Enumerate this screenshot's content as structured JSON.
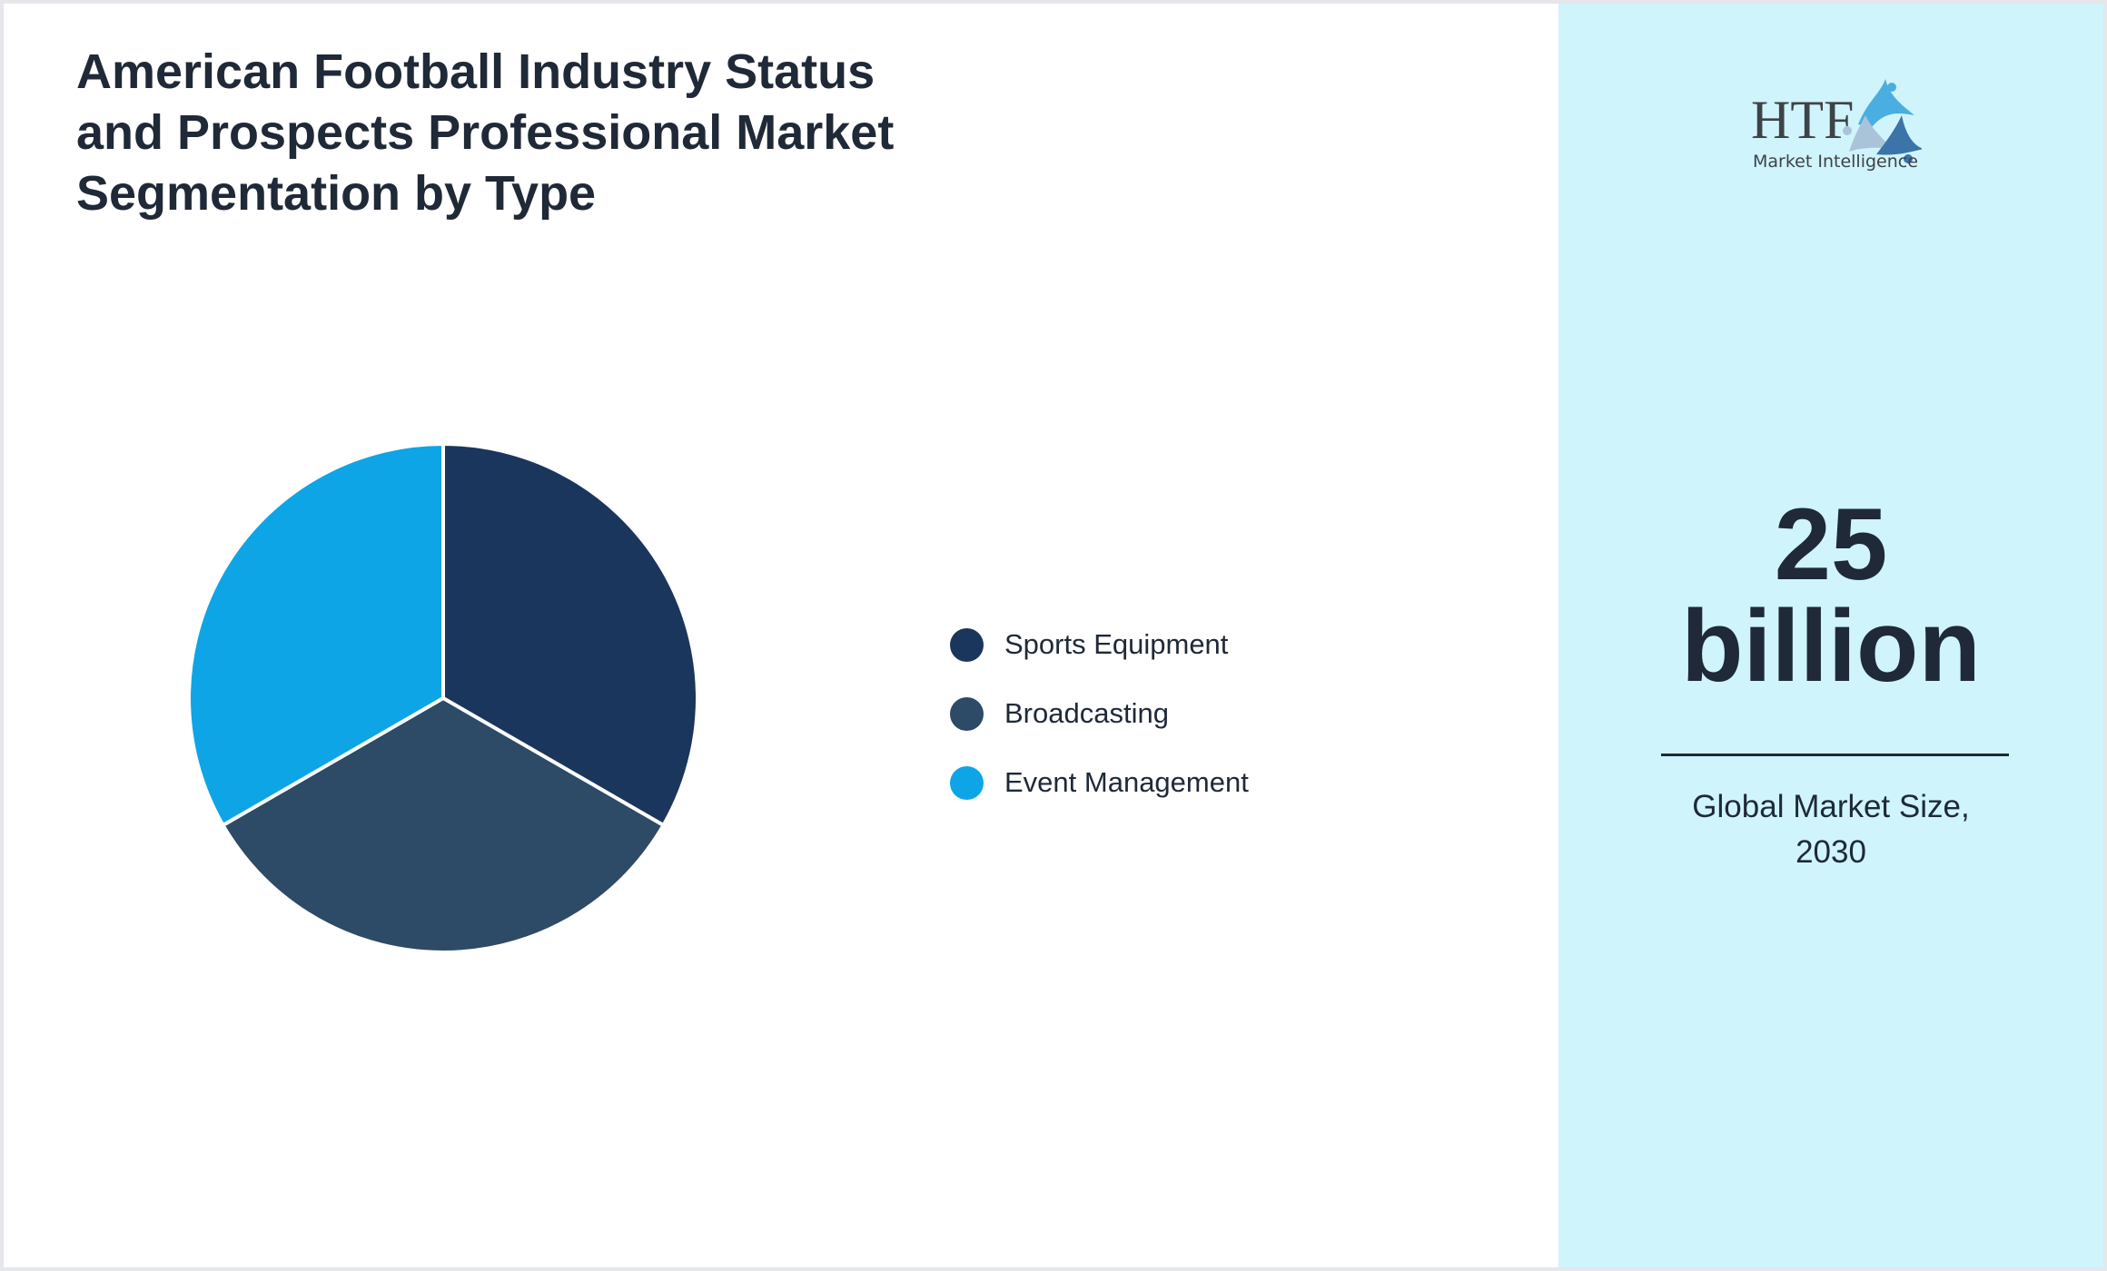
{
  "title": "American Football Industry Status and Prospects Professional Market Segmentation by Type",
  "chart_data": {
    "type": "pie",
    "title": "American Football Industry Status and Prospects Professional Market Segmentation by Type",
    "categories": [
      "Sports Equipment",
      "Broadcasting",
      "Event Management"
    ],
    "values": [
      33.3,
      33.3,
      33.3
    ],
    "colors": [
      "#1b365d",
      "#2d4a66",
      "#0ea5e6"
    ],
    "legend": "right"
  },
  "panel": {
    "logo_text": "HTF Market Intelligence",
    "logo_main": "HTF",
    "logo_sub": "Market Intelligence",
    "value_line1": "25",
    "value_line2": "billion",
    "caption_line1": "Global Market Size,",
    "caption_line2": "2030"
  }
}
